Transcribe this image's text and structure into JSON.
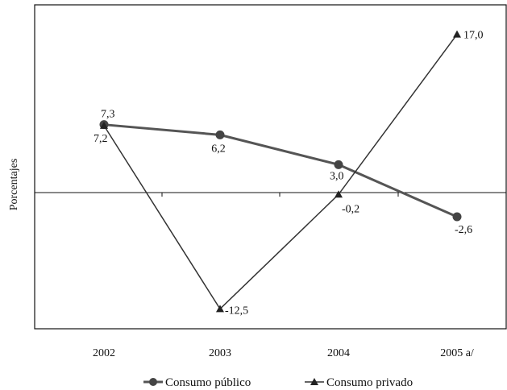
{
  "chart_data": {
    "type": "line",
    "title": "",
    "xlabel": "",
    "ylabel": "Porcentajes",
    "categories": [
      "2002",
      "2003",
      "2004",
      "2005 a/"
    ],
    "ylim": [
      -20,
      22
    ],
    "grid": false,
    "legend_position": "bottom",
    "series": [
      {
        "name": "Consumo público",
        "values": [
          7.3,
          6.2,
          3.0,
          -2.6
        ],
        "labels": [
          "7,3",
          "6,2",
          "3,0",
          "-2,6"
        ],
        "marker": "circle",
        "color": "#555555"
      },
      {
        "name": "Consumo privado",
        "values": [
          7.2,
          -12.5,
          -0.2,
          17.0
        ],
        "labels": [
          "7,2",
          "-12,5",
          "-0,2",
          "17,0"
        ],
        "marker": "triangle",
        "color": "#333333"
      }
    ]
  }
}
